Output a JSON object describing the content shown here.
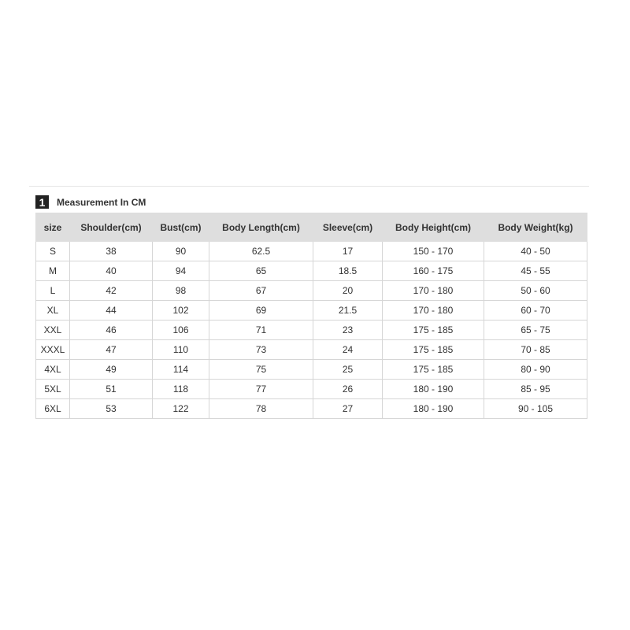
{
  "section": {
    "number": "1",
    "title": "Measurement In CM"
  },
  "table": {
    "headers": [
      "size",
      "Shoulder(cm)",
      "Bust(cm)",
      "Body Length(cm)",
      "Sleeve(cm)",
      "Body Height(cm)",
      "Body Weight(kg)"
    ],
    "rows": [
      [
        "S",
        "38",
        "90",
        "62.5",
        "17",
        "150 - 170",
        "40 - 50"
      ],
      [
        "M",
        "40",
        "94",
        "65",
        "18.5",
        "160 - 175",
        "45 - 55"
      ],
      [
        "L",
        "42",
        "98",
        "67",
        "20",
        "170 - 180",
        "50 - 60"
      ],
      [
        "XL",
        "44",
        "102",
        "69",
        "21.5",
        "170 - 180",
        "60 - 70"
      ],
      [
        "XXL",
        "46",
        "106",
        "71",
        "23",
        "175 - 185",
        "65 - 75"
      ],
      [
        "XXXL",
        "47",
        "110",
        "73",
        "24",
        "175 - 185",
        "70 - 85"
      ],
      [
        "4XL",
        "49",
        "114",
        "75",
        "25",
        "175 - 185",
        "80 - 90"
      ],
      [
        "5XL",
        "51",
        "118",
        "77",
        "26",
        "180 - 190",
        "85 - 95"
      ],
      [
        "6XL",
        "53",
        "122",
        "78",
        "27",
        "180 - 190",
        "90 - 105"
      ]
    ]
  }
}
